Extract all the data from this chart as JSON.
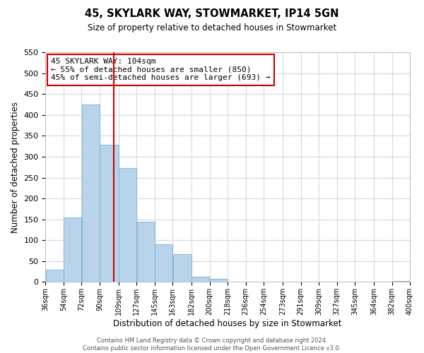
{
  "title": "45, SKYLARK WAY, STOWMARKET, IP14 5GN",
  "subtitle": "Size of property relative to detached houses in Stowmarket",
  "xlabel": "Distribution of detached houses by size in Stowmarket",
  "ylabel": "Number of detached properties",
  "bar_left_edges": [
    36,
    54,
    72,
    90,
    109,
    127,
    145,
    163,
    182,
    200,
    218,
    236,
    254,
    273,
    291,
    309,
    327,
    345,
    364,
    382
  ],
  "bar_widths": [
    18,
    18,
    18,
    19,
    18,
    18,
    18,
    19,
    18,
    18,
    18,
    18,
    19,
    18,
    18,
    18,
    18,
    19,
    18,
    18
  ],
  "bar_heights": [
    30,
    155,
    425,
    328,
    273,
    145,
    91,
    67,
    13,
    8,
    0,
    0,
    0,
    0,
    0,
    0,
    0,
    0,
    0,
    2
  ],
  "tick_labels": [
    "36sqm",
    "54sqm",
    "72sqm",
    "90sqm",
    "109sqm",
    "127sqm",
    "145sqm",
    "163sqm",
    "182sqm",
    "200sqm",
    "218sqm",
    "236sqm",
    "254sqm",
    "273sqm",
    "291sqm",
    "309sqm",
    "327sqm",
    "345sqm",
    "364sqm",
    "382sqm",
    "400sqm"
  ],
  "tick_positions": [
    36,
    54,
    72,
    90,
    109,
    127,
    145,
    163,
    182,
    200,
    218,
    236,
    254,
    273,
    291,
    309,
    327,
    345,
    364,
    382,
    400
  ],
  "bar_color": "#b8d4ea",
  "bar_edge_color": "#7aafd4",
  "vline_x": 104,
  "vline_color": "#cc0000",
  "ylim": [
    0,
    550
  ],
  "yticks": [
    0,
    50,
    100,
    150,
    200,
    250,
    300,
    350,
    400,
    450,
    500,
    550
  ],
  "annotation_title": "45 SKYLARK WAY: 104sqm",
  "annotation_line1": "← 55% of detached houses are smaller (850)",
  "annotation_line2": "45% of semi-detached houses are larger (693) →",
  "footer_line1": "Contains HM Land Registry data © Crown copyright and database right 2024.",
  "footer_line2": "Contains public sector information licensed under the Open Government Licence v3.0.",
  "grid_color": "#d0d8e8",
  "background_color": "#ffffff"
}
